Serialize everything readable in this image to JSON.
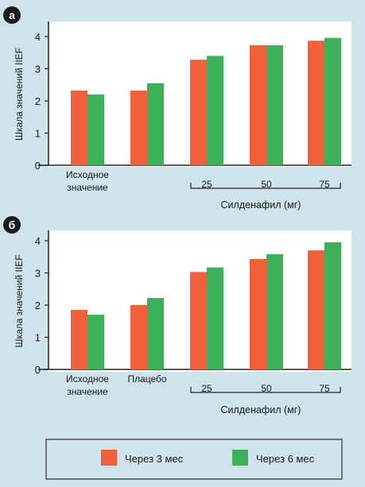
{
  "colors": {
    "page_background": "#cfe3ea",
    "plot_background": "#ffffff",
    "series_3mo": "#f0603a",
    "series_6mo": "#3fb05a",
    "badge": "#1b1b1b"
  },
  "chart_data": [
    {
      "type": "bar",
      "panel_label": "а",
      "ylabel": "Шкала значений IIEF",
      "ylim": [
        0,
        4
      ],
      "yticks": [
        "0",
        "1",
        "2",
        "3",
        "4"
      ],
      "categories": [
        "Исходное значение",
        "",
        "25",
        "50",
        "75"
      ],
      "group_label": "Силденафил (мг)",
      "series": [
        {
          "name": "Через 3 мес",
          "values": [
            2.32,
            2.32,
            3.28,
            3.73,
            3.87
          ]
        },
        {
          "name": "Через 6 мес",
          "values": [
            2.2,
            2.55,
            3.4,
            3.73,
            3.96
          ]
        }
      ]
    },
    {
      "type": "bar",
      "panel_label": "б",
      "ylabel": "Шкала значений IIEF",
      "ylim": [
        0,
        4
      ],
      "yticks": [
        "0",
        "1",
        "2",
        "3",
        "4"
      ],
      "categories": [
        "Исходное значение",
        "Плацебо",
        "25",
        "50",
        "75"
      ],
      "group_label": "Силденафил (мг)",
      "series": [
        {
          "name": "Через 3 мес",
          "values": [
            1.85,
            2.0,
            3.03,
            3.43,
            3.7
          ]
        },
        {
          "name": "Через 6 мес",
          "values": [
            1.7,
            2.22,
            3.17,
            3.58,
            3.95
          ]
        }
      ]
    }
  ],
  "legend": {
    "items": [
      "Через 3 мес",
      "Через 6 мес"
    ]
  }
}
